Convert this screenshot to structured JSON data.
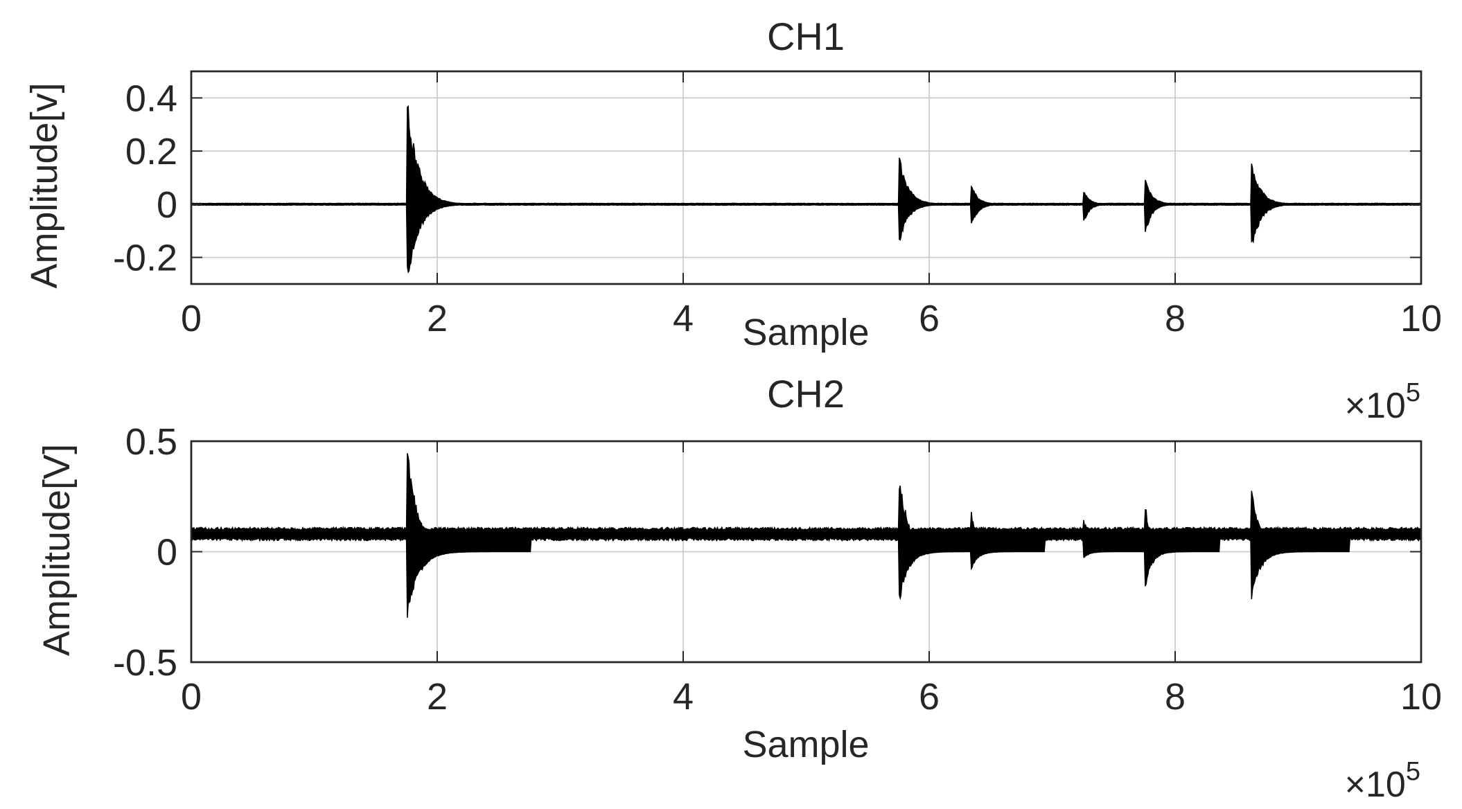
{
  "chart_data": [
    {
      "type": "line",
      "title": "CH1",
      "xlabel": "Sample",
      "ylabel": "Amplitude[v]",
      "xlim": [
        0,
        10
      ],
      "ylim": [
        -0.3,
        0.5
      ],
      "x_multiplier": "×10",
      "x_multiplier_exponent": "5",
      "x_ticks": [
        0,
        2,
        4,
        6,
        8,
        10
      ],
      "x_tick_labels": [
        "0",
        "2",
        "4",
        "6",
        "8",
        "10"
      ],
      "y_ticks": [
        -0.2,
        0,
        0.2,
        0.4
      ],
      "y_tick_labels": [
        "-0.2",
        "0",
        "0.2",
        "0.4"
      ],
      "grid": true,
      "series_color": "#000000",
      "baseline": 0,
      "noise": 0.004,
      "bursts": [
        {
          "x": 1.76,
          "pos": 0.4,
          "neg": -0.3,
          "decay": 0.2
        },
        {
          "x": 5.76,
          "pos": 0.18,
          "neg": -0.15,
          "decay": 0.16
        },
        {
          "x": 6.34,
          "pos": 0.08,
          "neg": -0.09,
          "decay": 0.12
        },
        {
          "x": 7.26,
          "pos": 0.05,
          "neg": -0.07,
          "decay": 0.1
        },
        {
          "x": 7.76,
          "pos": 0.1,
          "neg": -0.11,
          "decay": 0.12
        },
        {
          "x": 8.62,
          "pos": 0.17,
          "neg": -0.19,
          "decay": 0.16
        }
      ]
    },
    {
      "type": "line",
      "title": "CH2",
      "xlabel": "Sample",
      "ylabel": "Amplitude[V]",
      "xlim": [
        0,
        10
      ],
      "ylim": [
        -0.5,
        0.5
      ],
      "x_multiplier": "×10",
      "x_multiplier_exponent": "5",
      "x_ticks": [
        0,
        2,
        4,
        6,
        8,
        10
      ],
      "x_tick_labels": [
        "0",
        "2",
        "4",
        "6",
        "8",
        "10"
      ],
      "y_ticks": [
        -0.5,
        0,
        0.5
      ],
      "y_tick_labels": [
        "-0.5",
        "0",
        "0.5"
      ],
      "grid": true,
      "series_color": "#000000",
      "baseline": 0.08,
      "noise": 0.03,
      "bursts": [
        {
          "x": 1.76,
          "pos": 0.47,
          "neg": -0.31,
          "decay": 0.2
        },
        {
          "x": 5.76,
          "pos": 0.37,
          "neg": -0.23,
          "decay": 0.16
        },
        {
          "x": 6.34,
          "pos": 0.19,
          "neg": -0.09,
          "decay": 0.12
        },
        {
          "x": 7.26,
          "pos": 0.16,
          "neg": -0.03,
          "decay": 0.1
        },
        {
          "x": 7.76,
          "pos": 0.21,
          "neg": -0.16,
          "decay": 0.12
        },
        {
          "x": 8.62,
          "pos": 0.31,
          "neg": -0.23,
          "decay": 0.16
        }
      ]
    }
  ]
}
